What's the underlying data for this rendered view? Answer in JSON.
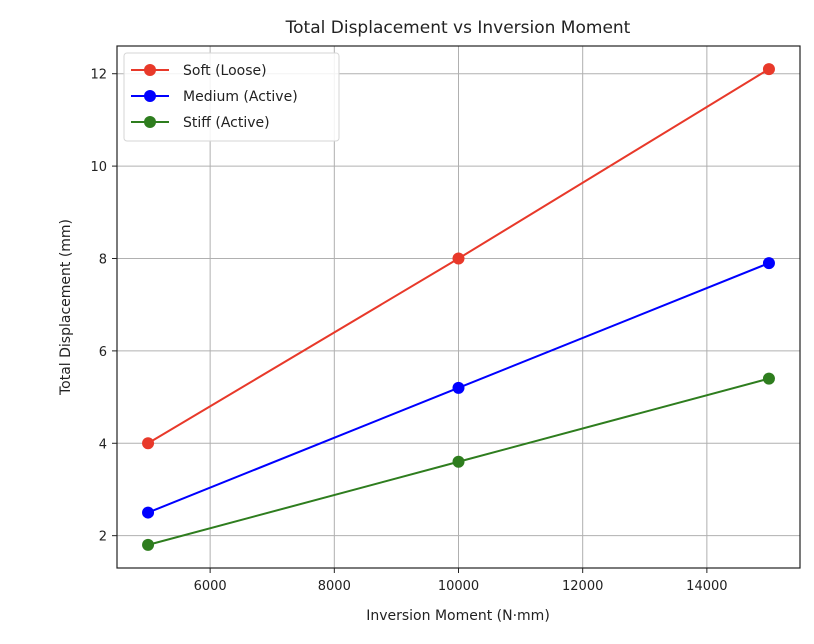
{
  "chart_data": {
    "type": "line",
    "title": "Total Displacement vs Inversion Moment",
    "xlabel": "Inversion Moment (N·mm)",
    "ylabel": "Total Displacement (mm)",
    "x": [
      5000,
      10000,
      15000
    ],
    "series": [
      {
        "name": "Soft (Loose)",
        "color": "#e8392a",
        "values": [
          4.0,
          8.0,
          12.1
        ]
      },
      {
        "name": "Medium (Active)",
        "color": "#0000ff",
        "values": [
          2.5,
          5.2,
          7.9
        ]
      },
      {
        "name": "Stiff (Active)",
        "color": "#2e7d1e",
        "values": [
          1.8,
          3.6,
          5.4
        ]
      }
    ],
    "xticks": [
      6000,
      8000,
      10000,
      12000,
      14000
    ],
    "yticks": [
      2,
      4,
      6,
      8,
      10,
      12
    ],
    "xlim": [
      4500,
      15500
    ],
    "ylim": [
      1.3,
      12.6
    ],
    "grid": true,
    "legend_position": "upper left",
    "marker": "circle"
  }
}
